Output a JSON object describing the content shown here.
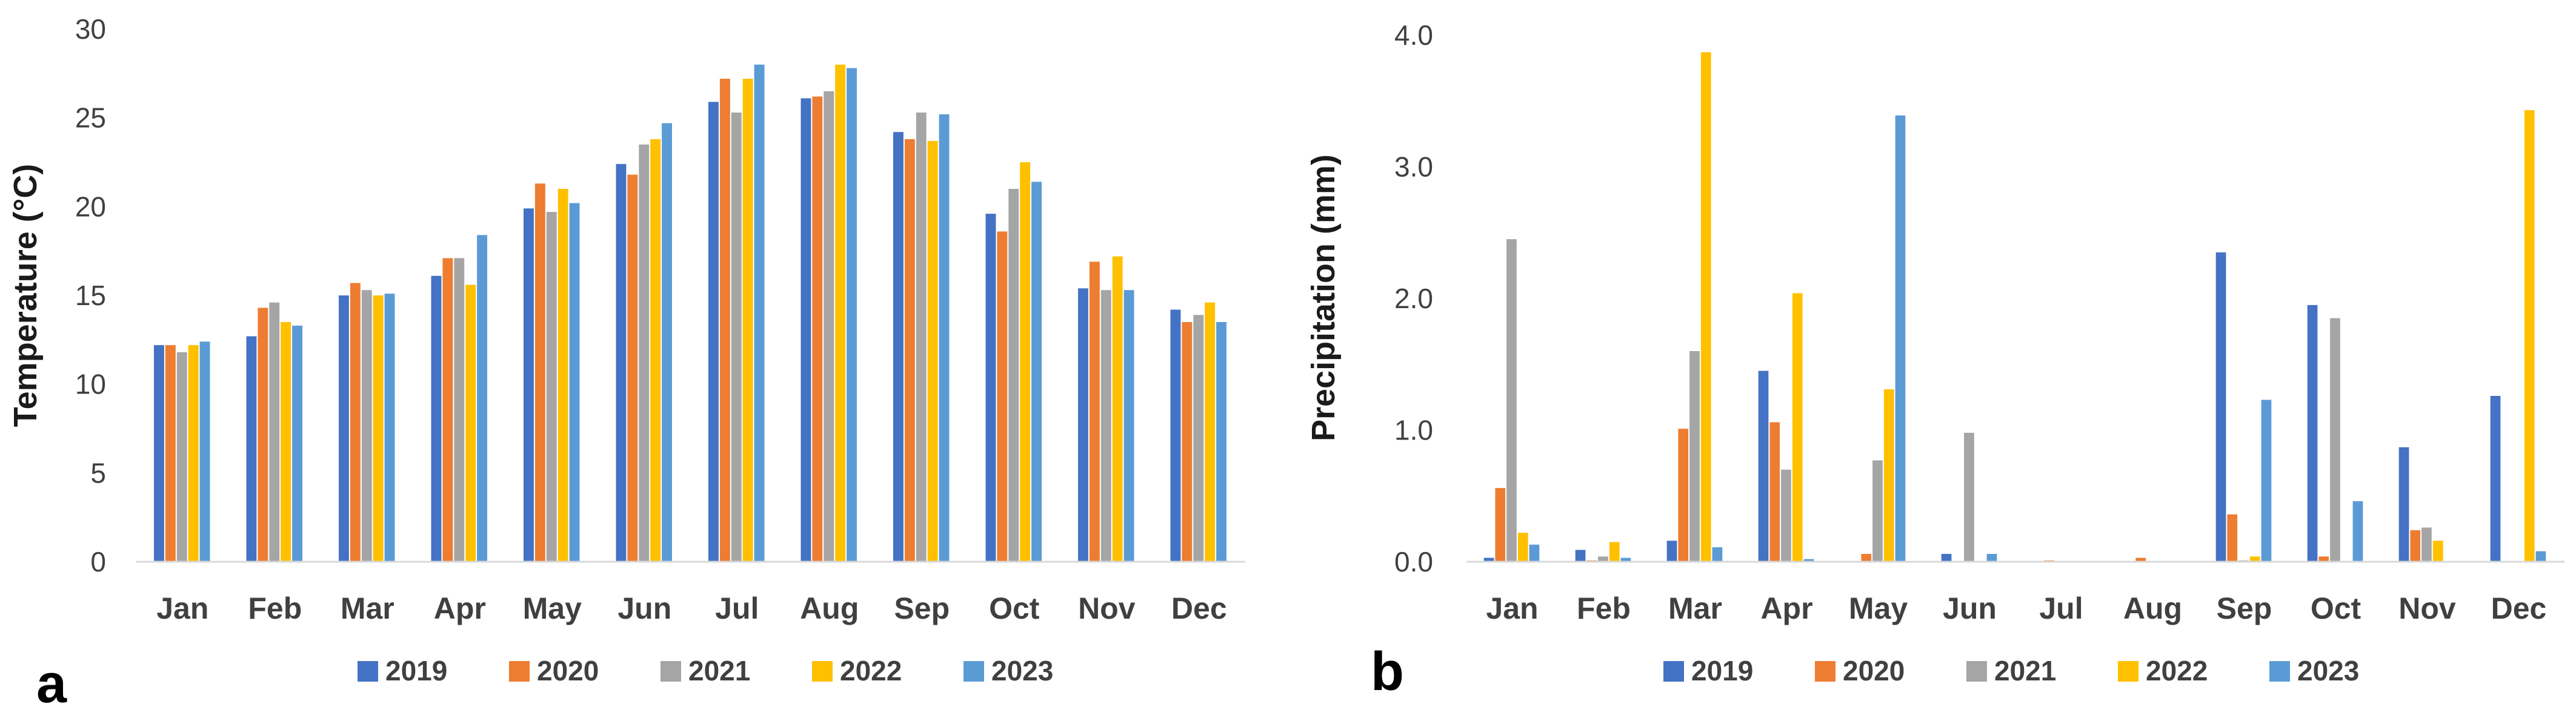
{
  "colors": {
    "2019": "#4472C4",
    "2020": "#ED7D31",
    "2021": "#A5A5A5",
    "2022": "#FFC000",
    "2023": "#5B9BD5",
    "axis": "#d9d9d9",
    "text": "#404040"
  },
  "chart_data": [
    {
      "type": "bar",
      "panel_label": "a",
      "title": "",
      "ylabel": "Temperature (°C)",
      "xlabel": "",
      "ylim": [
        0,
        30
      ],
      "yticks": [
        "0",
        "5",
        "10",
        "15",
        "20",
        "25",
        "30"
      ],
      "ytick_values": [
        0,
        5,
        10,
        15,
        20,
        25,
        30
      ],
      "categories": [
        "Jan",
        "Feb",
        "Mar",
        "Apr",
        "May",
        "Jun",
        "Jul",
        "Aug",
        "Sep",
        "Oct",
        "Nov",
        "Dec"
      ],
      "legend_position": "bottom",
      "series": [
        {
          "name": "2019",
          "values": [
            12.2,
            12.7,
            15.0,
            16.1,
            19.9,
            22.4,
            25.9,
            26.1,
            24.2,
            19.6,
            15.4,
            14.2
          ]
        },
        {
          "name": "2020",
          "values": [
            12.2,
            14.3,
            15.7,
            17.1,
            21.3,
            21.8,
            27.2,
            26.2,
            23.8,
            18.6,
            16.9,
            13.5
          ]
        },
        {
          "name": "2021",
          "values": [
            11.8,
            14.6,
            15.3,
            17.1,
            19.7,
            23.5,
            25.3,
            26.5,
            25.3,
            21.0,
            15.3,
            13.9
          ]
        },
        {
          "name": "2022",
          "values": [
            12.2,
            13.5,
            15.0,
            15.6,
            21.0,
            23.8,
            27.2,
            28.0,
            23.7,
            22.5,
            17.2,
            14.6
          ]
        },
        {
          "name": "2023",
          "values": [
            12.4,
            13.3,
            15.1,
            18.4,
            20.2,
            24.7,
            28.0,
            27.8,
            25.2,
            21.4,
            15.3,
            13.5
          ]
        }
      ]
    },
    {
      "type": "bar",
      "panel_label": "b",
      "title": "",
      "ylabel": "Precipitation (mm)",
      "xlabel": "",
      "ylim": [
        0,
        4.0
      ],
      "yticks": [
        "0.0",
        "1.0",
        "2.0",
        "3.0",
        "4.0"
      ],
      "ytick_values": [
        0,
        1,
        2,
        3,
        4
      ],
      "categories": [
        "Jan",
        "Feb",
        "Mar",
        "Apr",
        "May",
        "Jun",
        "Jul",
        "Aug",
        "Sep",
        "Oct",
        "Nov",
        "Dec"
      ],
      "legend_position": "bottom",
      "series": [
        {
          "name": "2019",
          "values": [
            0.03,
            0.09,
            0.16,
            1.45,
            0.0,
            0.06,
            0.0,
            0.0,
            2.35,
            1.95,
            0.87,
            1.26
          ]
        },
        {
          "name": "2020",
          "values": [
            0.56,
            0.01,
            1.01,
            1.06,
            0.06,
            0.0,
            0.01,
            0.03,
            0.36,
            0.04,
            0.24,
            0.0
          ]
        },
        {
          "name": "2021",
          "values": [
            2.45,
            0.04,
            1.6,
            0.7,
            0.77,
            0.98,
            0.0,
            0.0,
            0.01,
            1.85,
            0.26,
            0.0
          ]
        },
        {
          "name": "2022",
          "values": [
            0.22,
            0.15,
            3.87,
            2.04,
            1.31,
            0.0,
            0.0,
            0.0,
            0.04,
            0.0,
            0.16,
            3.43
          ]
        },
        {
          "name": "2023",
          "values": [
            0.13,
            0.03,
            0.11,
            0.02,
            3.39,
            0.06,
            0.0,
            0.0,
            1.23,
            0.46,
            0.0,
            0.08
          ]
        }
      ]
    }
  ]
}
